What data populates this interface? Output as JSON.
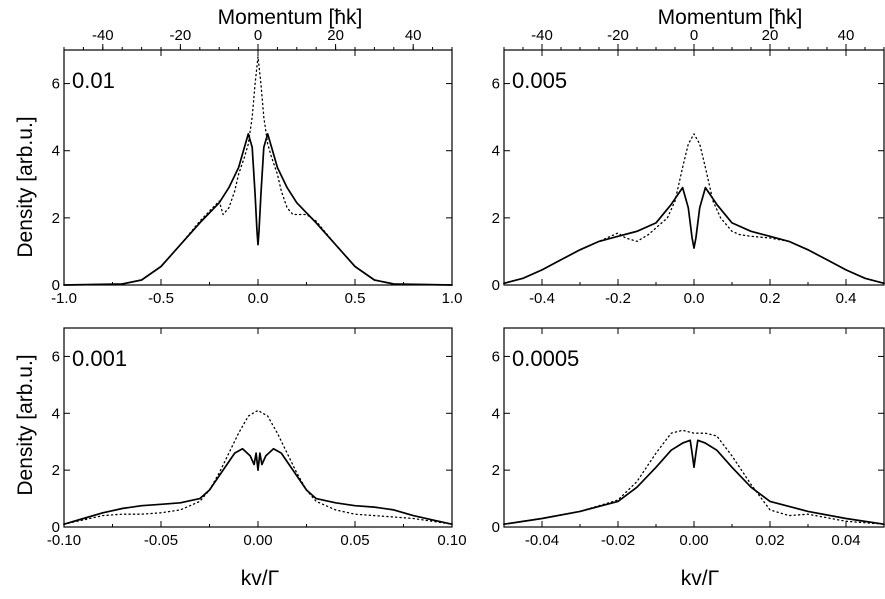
{
  "figure": {
    "top_axis_label": "Momentum [ħk]",
    "y_axis_label": "Density [arb.u.]",
    "x_axis_label": "kv/Γ"
  },
  "chart_data": [
    {
      "type": "line",
      "panel_label": "0.01",
      "xlim": [
        -1.0,
        1.0
      ],
      "ylim": [
        0,
        7
      ],
      "xticks": [
        -1.0,
        -0.5,
        0.0,
        0.5,
        1.0
      ],
      "xtick_labels": [
        "-1.0",
        "-0.5",
        "0.0",
        "0.5",
        "1.0"
      ],
      "yticks": [
        0,
        2,
        4,
        6
      ],
      "top_ticks": [
        -40,
        -20,
        0,
        20,
        40
      ],
      "top_xlim": [
        -50,
        50
      ],
      "series": [
        {
          "style": "solid",
          "x": [
            -1.0,
            -0.7,
            -0.6,
            -0.5,
            -0.4,
            -0.3,
            -0.2,
            -0.15,
            -0.1,
            -0.07,
            -0.05,
            -0.03,
            -0.015,
            -0.005,
            0.0,
            0.005,
            0.015,
            0.03,
            0.05,
            0.07,
            0.1,
            0.15,
            0.2,
            0.3,
            0.4,
            0.5,
            0.6,
            0.7,
            1.0
          ],
          "y": [
            0,
            0.03,
            0.15,
            0.55,
            1.2,
            1.85,
            2.45,
            2.9,
            3.5,
            4.1,
            4.5,
            4.1,
            2.7,
            1.6,
            1.2,
            1.6,
            2.7,
            4.1,
            4.5,
            4.1,
            3.5,
            2.9,
            2.45,
            1.85,
            1.2,
            0.55,
            0.15,
            0.03,
            0
          ]
        },
        {
          "style": "dotted",
          "x": [
            -1.0,
            -0.7,
            -0.6,
            -0.5,
            -0.4,
            -0.3,
            -0.25,
            -0.2,
            -0.18,
            -0.15,
            -0.12,
            -0.1,
            -0.07,
            -0.05,
            -0.03,
            -0.015,
            0.0,
            0.015,
            0.03,
            0.05,
            0.07,
            0.1,
            0.12,
            0.15,
            0.18,
            0.2,
            0.25,
            0.3,
            0.4,
            0.5,
            0.6,
            0.7,
            1.0
          ],
          "y": [
            0,
            0.03,
            0.15,
            0.55,
            1.2,
            1.9,
            2.2,
            2.5,
            2.1,
            2.3,
            2.8,
            3.3,
            3.8,
            4.2,
            5.0,
            6.0,
            6.8,
            6.0,
            5.0,
            4.2,
            3.8,
            3.3,
            2.8,
            2.3,
            2.1,
            2.1,
            2.1,
            1.9,
            1.2,
            0.55,
            0.15,
            0.03,
            0
          ]
        }
      ]
    },
    {
      "type": "line",
      "panel_label": "0.005",
      "xlim": [
        -0.5,
        0.5
      ],
      "ylim": [
        0,
        7
      ],
      "xticks": [
        -0.4,
        -0.2,
        0.0,
        0.2,
        0.4
      ],
      "xtick_labels": [
        "-0.4",
        "-0.2",
        "0.0",
        "0.2",
        "0.4"
      ],
      "yticks": [
        0,
        2,
        4,
        6
      ],
      "top_ticks": [
        -40,
        -20,
        0,
        20,
        40
      ],
      "top_xlim": [
        -50,
        50
      ],
      "series": [
        {
          "style": "solid",
          "x": [
            -0.5,
            -0.45,
            -0.4,
            -0.35,
            -0.3,
            -0.25,
            -0.2,
            -0.15,
            -0.1,
            -0.06,
            -0.03,
            -0.015,
            -0.005,
            0.0,
            0.005,
            0.015,
            0.03,
            0.06,
            0.1,
            0.15,
            0.2,
            0.25,
            0.3,
            0.35,
            0.4,
            0.45,
            0.5
          ],
          "y": [
            0.05,
            0.2,
            0.45,
            0.75,
            1.05,
            1.3,
            1.45,
            1.6,
            1.85,
            2.4,
            2.9,
            2.3,
            1.4,
            1.1,
            1.4,
            2.3,
            2.9,
            2.4,
            1.85,
            1.6,
            1.45,
            1.3,
            1.05,
            0.75,
            0.45,
            0.2,
            0.05
          ]
        },
        {
          "style": "dotted",
          "x": [
            -0.5,
            -0.45,
            -0.4,
            -0.35,
            -0.3,
            -0.25,
            -0.2,
            -0.18,
            -0.15,
            -0.12,
            -0.1,
            -0.07,
            -0.05,
            -0.03,
            -0.015,
            0.0,
            0.015,
            0.03,
            0.05,
            0.07,
            0.1,
            0.12,
            0.15,
            0.2,
            0.25,
            0.3,
            0.35,
            0.4,
            0.45,
            0.5
          ],
          "y": [
            0.05,
            0.2,
            0.45,
            0.75,
            1.05,
            1.3,
            1.55,
            1.4,
            1.3,
            1.5,
            1.7,
            2.0,
            2.5,
            3.5,
            4.2,
            4.5,
            4.2,
            3.5,
            2.5,
            2.0,
            1.6,
            1.5,
            1.45,
            1.4,
            1.3,
            1.05,
            0.75,
            0.45,
            0.2,
            0.05
          ]
        }
      ]
    },
    {
      "type": "line",
      "panel_label": "0.001",
      "xlim": [
        -0.1,
        0.1
      ],
      "ylim": [
        0,
        7
      ],
      "xticks": [
        -0.1,
        -0.05,
        0.0,
        0.05,
        0.1
      ],
      "xtick_labels": [
        "-0.10",
        "-0.05",
        "0.00",
        "0.05",
        "0.10"
      ],
      "yticks": [
        0,
        2,
        4,
        6
      ],
      "series": [
        {
          "style": "solid",
          "x": [
            -0.1,
            -0.09,
            -0.08,
            -0.07,
            -0.06,
            -0.05,
            -0.04,
            -0.03,
            -0.025,
            -0.02,
            -0.015,
            -0.012,
            -0.008,
            -0.004,
            -0.002,
            -0.001,
            0.0,
            0.001,
            0.002,
            0.004,
            0.008,
            0.012,
            0.015,
            0.02,
            0.025,
            0.03,
            0.04,
            0.05,
            0.06,
            0.07,
            0.08,
            0.09,
            0.1
          ],
          "y": [
            0.1,
            0.3,
            0.5,
            0.65,
            0.75,
            0.8,
            0.85,
            1.0,
            1.3,
            1.8,
            2.3,
            2.6,
            2.75,
            2.5,
            2.2,
            2.6,
            2.0,
            2.6,
            2.2,
            2.5,
            2.75,
            2.6,
            2.3,
            1.8,
            1.3,
            1.0,
            0.85,
            0.75,
            0.7,
            0.6,
            0.4,
            0.25,
            0.1
          ]
        },
        {
          "style": "dotted",
          "x": [
            -0.1,
            -0.09,
            -0.08,
            -0.07,
            -0.06,
            -0.05,
            -0.04,
            -0.03,
            -0.025,
            -0.02,
            -0.015,
            -0.01,
            -0.005,
            0.0,
            0.005,
            0.01,
            0.015,
            0.02,
            0.025,
            0.03,
            0.04,
            0.05,
            0.06,
            0.07,
            0.08,
            0.09,
            0.1
          ],
          "y": [
            0.1,
            0.25,
            0.4,
            0.45,
            0.45,
            0.5,
            0.6,
            0.9,
            1.3,
            1.9,
            2.6,
            3.3,
            3.9,
            4.1,
            3.9,
            3.3,
            2.6,
            1.9,
            1.3,
            0.9,
            0.6,
            0.45,
            0.4,
            0.35,
            0.3,
            0.2,
            0.1
          ]
        }
      ]
    },
    {
      "type": "line",
      "panel_label": "0.0005",
      "xlim": [
        -0.05,
        0.05
      ],
      "ylim": [
        0,
        7
      ],
      "xticks": [
        -0.04,
        -0.02,
        0.0,
        0.02,
        0.04
      ],
      "xtick_labels": [
        "-0.04",
        "-0.02",
        "0.00",
        "0.02",
        "0.04"
      ],
      "yticks": [
        0,
        2,
        4,
        6
      ],
      "series": [
        {
          "style": "solid",
          "x": [
            -0.05,
            -0.04,
            -0.03,
            -0.02,
            -0.015,
            -0.01,
            -0.006,
            -0.003,
            -0.001,
            -0.0005,
            0.0,
            0.0005,
            0.001,
            0.003,
            0.006,
            0.01,
            0.015,
            0.02,
            0.03,
            0.04,
            0.05
          ],
          "y": [
            0.1,
            0.3,
            0.55,
            0.9,
            1.4,
            2.1,
            2.7,
            2.95,
            3.05,
            2.6,
            2.1,
            2.6,
            3.05,
            2.95,
            2.7,
            2.1,
            1.4,
            0.9,
            0.55,
            0.3,
            0.1
          ]
        },
        {
          "style": "dotted",
          "x": [
            -0.05,
            -0.04,
            -0.03,
            -0.02,
            -0.015,
            -0.01,
            -0.006,
            -0.003,
            0.0,
            0.003,
            0.006,
            0.01,
            0.015,
            0.02,
            0.025,
            0.03,
            0.04,
            0.05
          ],
          "y": [
            0.1,
            0.3,
            0.55,
            0.95,
            1.6,
            2.6,
            3.3,
            3.4,
            3.3,
            3.3,
            3.2,
            2.5,
            1.5,
            0.6,
            0.4,
            0.45,
            0.2,
            0.1
          ]
        }
      ]
    }
  ]
}
